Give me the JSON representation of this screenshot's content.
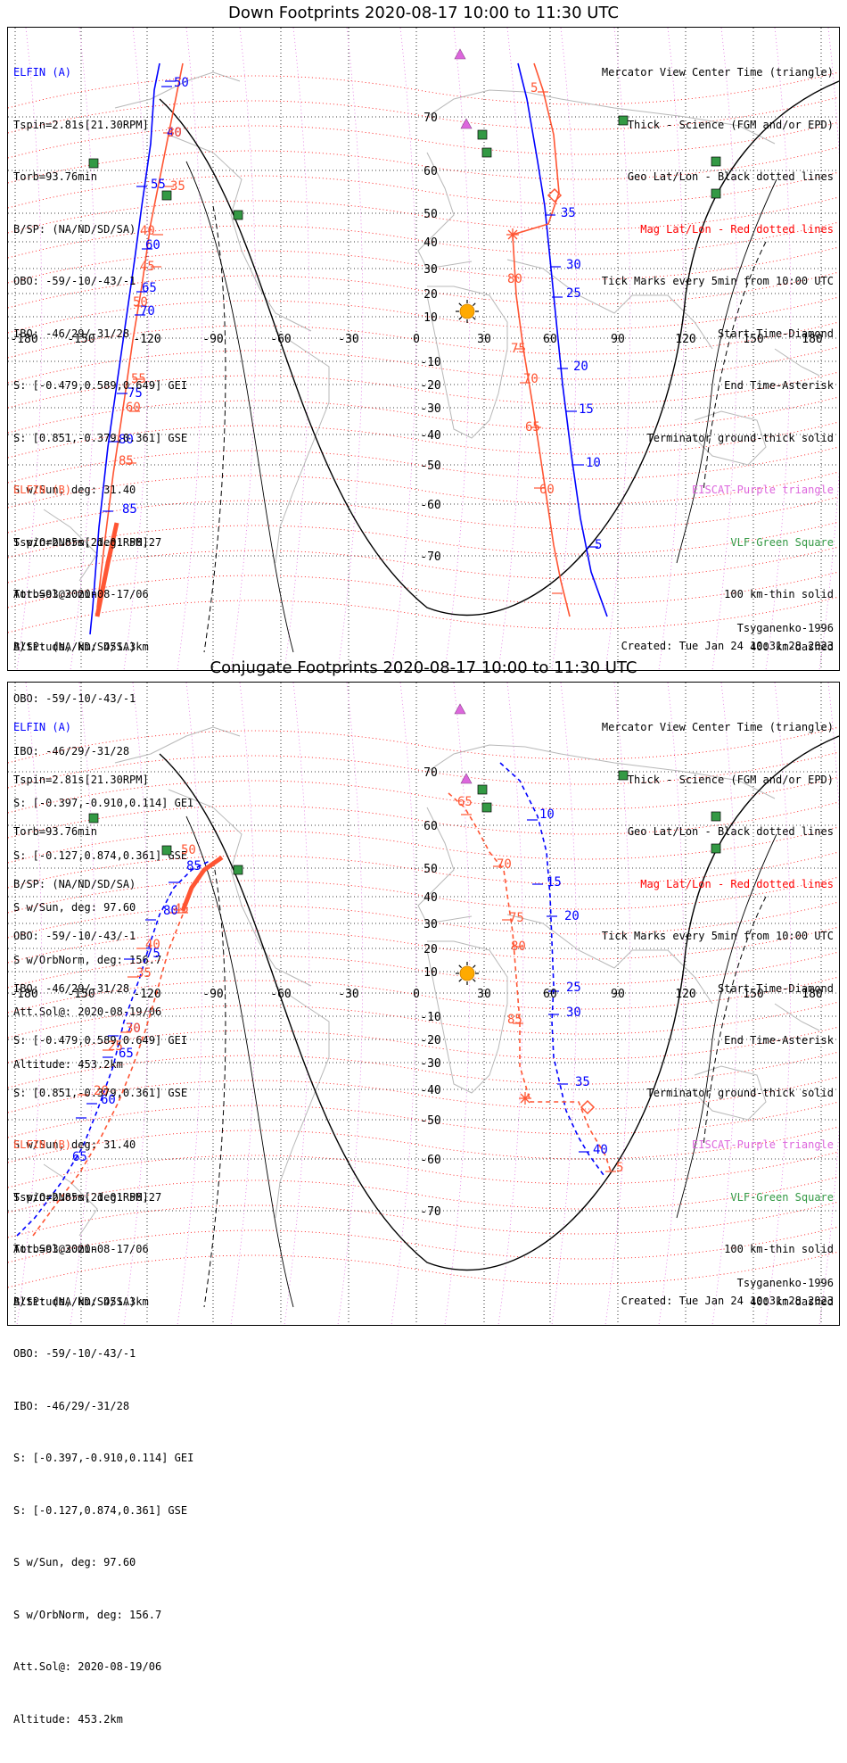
{
  "colors": {
    "elfin_a": "#0000ff",
    "elfin_b": "#ff5533",
    "mag_grid": "#ff0000",
    "eiscat": "#dd66dd",
    "vlf": "#339944",
    "terminator": "#000000",
    "geo_grid": "#000000",
    "coast": "#b8b8b8",
    "sun": "#ffaa00"
  },
  "icons": [
    "sun-icon",
    "eiscat-triangle-icon",
    "vlf-square-icon",
    "start-diamond-icon",
    "end-asterisk-icon"
  ],
  "panels": [
    {
      "title": "Down Footprints 2020-08-17 10:00 to 11:30 UTC",
      "elfin_a": [
        "ELFIN (A)",
        "Tspin=2.81s[21.30RPM]",
        "Torb=93.76min",
        "B/SP: (NA/ND/SD/SA)",
        "OBO: -59/-10/-43/-1",
        "IBO: -46/29/-31/28",
        "S: [-0.479,0.589,0.649] GEI",
        "S: [0.851,-0.379,0.361] GSE",
        "S w/Sun, deg: 31.40",
        "S w/OrbNorm, deg: 56.27",
        "Att.Sol@2020-08-17/06",
        "Altitude, km: 451.3km"
      ],
      "elfin_b": [
        "ELFIN (B)",
        "Tspin=2.85s[21.01RPM]",
        "Torb=93.30min",
        "B/SP: (NA/ND/SD/SA)",
        "OBO: -59/-10/-43/-1",
        "IBO: -46/29/-31/28",
        "S: [-0.397,-0.910,0.114] GEI",
        "S: [-0.127,0.874,0.361] GSE",
        "S w/Sun, deg: 97.60",
        "S w/OrbNorm, deg: 156.7",
        "Att.Sol@: 2020-08-19/06",
        "Altitude: 453.2km"
      ],
      "legend": [
        "Mercator View Center Time (triangle)",
        "Thick - Science (FGM and/or EPD)",
        "Geo Lat/Lon - Black dotted lines",
        "Mag Lat/Lon - Red dotted lines",
        "Tick Marks every 5min from 10:00 UTC",
        "Start Time-Diamond",
        "End Time-Asterisk",
        "Terminator ground-thick solid",
        "EISCAT-Purple triangle",
        "VLF-Green Square",
        "100 km-thin solid",
        "400 km-dashed"
      ],
      "model": "Tsyganenko-1996",
      "created": "Created: Tue Jan 24 10:31:28 2023",
      "lon_ticks": [
        "-180",
        "-150",
        "-120",
        "-90",
        "-60",
        "-30",
        "0",
        "30",
        "60",
        "90",
        "120",
        "150",
        "180"
      ],
      "lat_ticks": [
        "70",
        "60",
        "50",
        "40",
        "30",
        "20",
        "10",
        "-10",
        "-20",
        "-30",
        "-40",
        "-50",
        "-60",
        "-70"
      ],
      "a_tick_labels": [
        "50",
        "55",
        "60",
        "65",
        "70",
        "75",
        "80",
        "85",
        "40",
        "35",
        "30",
        "25",
        "20",
        "15",
        "10",
        "5"
      ],
      "b_tick_labels": [
        "5",
        "30",
        "35",
        "40",
        "45",
        "50",
        "55",
        "60",
        "85",
        "80",
        "75",
        "70",
        "65",
        "60"
      ]
    },
    {
      "title": "Conjugate Footprints 2020-08-17 10:00 to 11:30 UTC",
      "elfin_a": [
        "ELFIN (A)",
        "Tspin=2.81s[21.30RPM]",
        "Torb=93.76min",
        "B/SP: (NA/ND/SD/SA)",
        "OBO: -59/-10/-43/-1",
        "IBO: -46/29/-31/28",
        "S: [-0.479,0.589,0.649] GEI",
        "S: [0.851,-0.379,0.361] GSE",
        "S w/Sun, deg: 31.40",
        "S w/OrbNorm, deg: 56.27",
        "Att.Sol@2020-08-17/06",
        "Altitude, km: 451.3km"
      ],
      "elfin_b": [
        "ELFIN (B)",
        "Tspin=2.85s[21.01RPM]",
        "Torb=93.30min",
        "B/SP: (NA/ND/SD/SA)",
        "OBO: -59/-10/-43/-1",
        "IBO: -46/29/-31/28",
        "S: [-0.397,-0.910,0.114] GEI",
        "S: [-0.127,0.874,0.361] GSE",
        "S w/Sun, deg: 97.60",
        "S w/OrbNorm, deg: 156.7",
        "Att.Sol@: 2020-08-19/06",
        "Altitude: 453.2km"
      ],
      "legend": [
        "Mercator View Center Time (triangle)",
        "Thick - Science (FGM and/or EPD)",
        "Geo Lat/Lon - Black dotted lines",
        "Mag Lat/Lon - Red dotted lines",
        "Tick Marks every 5min from 10:00 UTC",
        "Start Time-Diamond",
        "End Time-Asterisk",
        "Terminator ground-thick solid",
        "EISCAT-Purple triangle",
        "VLF-Green Square",
        "100 km-thin solid",
        "400 km-dashed"
      ],
      "model": "Tsyganenko-1996",
      "created": "Created: Tue Jan 24 10:31:28 2023",
      "lon_ticks": [
        "-180",
        "-150",
        "-120",
        "-90",
        "-60",
        "-30",
        "0",
        "30",
        "60",
        "90",
        "120",
        "150",
        "180"
      ],
      "lat_ticks": [
        "70",
        "60",
        "50",
        "40",
        "30",
        "20",
        "10",
        "-10",
        "-20",
        "-30",
        "-40",
        "-50",
        "-60",
        "-70"
      ],
      "a_tick_labels": [
        "85",
        "80",
        "75",
        "70",
        "65",
        "60",
        "65",
        "10",
        "15",
        "20",
        "25",
        "30",
        "35",
        "40"
      ],
      "b_tick_labels": [
        "50",
        "45",
        "40",
        "35",
        "30",
        "25",
        "20",
        "65",
        "70",
        "75",
        "80",
        "85",
        "5"
      ]
    }
  ]
}
